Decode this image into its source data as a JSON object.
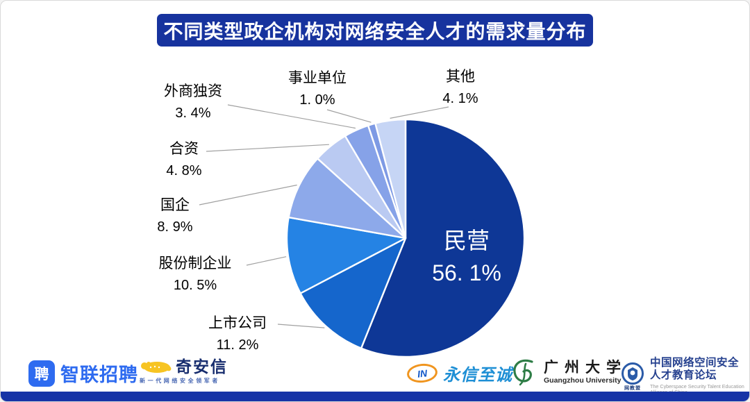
{
  "chart_data": {
    "type": "pie",
    "title": "不同类型政企机构对网络安全人才的需求量分布",
    "categories": [
      "民营",
      "上市公司",
      "股份制企业",
      "国企",
      "合资",
      "外商独资",
      "事业单位",
      "其他"
    ],
    "values": [
      56.1,
      11.2,
      10.5,
      8.9,
      4.8,
      3.4,
      1.0,
      4.1
    ],
    "pct_labels": [
      "56. 1%",
      "11. 2%",
      "10. 5%",
      "8. 9%",
      "4. 8%",
      "3. 4%",
      "1. 0%",
      "4. 1%"
    ],
    "slice_colors": [
      "#0E3796",
      "#1566CC",
      "#2583E4",
      "#8DA9EA",
      "#BACAF2",
      "#86A2E8",
      "#7E9AE4",
      "#C6D5F5"
    ],
    "start_angle_deg": 0,
    "direction": "clockwise",
    "label_style": "largest slice labeled inside, others outside with leader lines",
    "legend": "none",
    "leader_line_color": "#A0A0A0",
    "slice_gap_color": "#FFFFFF"
  },
  "header": {
    "bar_color": "#17339E"
  },
  "footer": {
    "logos": [
      {
        "name": "zhaopin",
        "icon_char": "聘",
        "text": "智联招聘",
        "brand_color": "#2E6BF0"
      },
      {
        "name": "qianxin",
        "text": "奇安信",
        "tagline": "新一代网络安全领军者",
        "brand_color": "#172D6E",
        "icon_color": "#F7C422"
      },
      {
        "name": "yongxin",
        "icon_text": "IN",
        "text": "永信至诚",
        "brand_color": "#1E8FD5"
      },
      {
        "name": "gzhu",
        "text": "广州大学",
        "subtext": "Guangzhou University",
        "brand_color": "#2E7D46"
      },
      {
        "name": "alliance",
        "emblem_caption": "网教盟",
        "text": "中国网络空间安全人才教育论坛",
        "subtext": "The Cyberspace Security Talent Education Alliance of China",
        "brand_color": "#2B5BA8"
      }
    ],
    "bottom_bar_color": "#1633A6"
  }
}
